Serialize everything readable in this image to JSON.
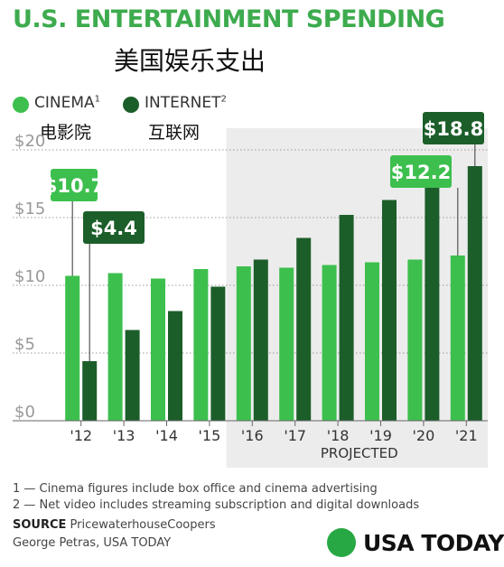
{
  "title": "U.S. ENTERTAINMENT SPENDING",
  "subtitle": "美国娱乐支出",
  "legend": [
    {
      "label": "CINEMA",
      "sup": "1",
      "cn": "电影院",
      "color": "#3dbf4e"
    },
    {
      "label": "INTERNET",
      "sup": "2",
      "cn": "互联网",
      "color": "#1c5e2a"
    }
  ],
  "chart_data": {
    "type": "bar",
    "categories": [
      "'12",
      "'13",
      "'14",
      "'15",
      "'16",
      "'17",
      "'18",
      "'19",
      "'20",
      "'21"
    ],
    "series": [
      {
        "name": "CINEMA",
        "color": "#3dbf4e",
        "values": [
          10.7,
          10.9,
          10.5,
          11.2,
          11.4,
          11.3,
          11.5,
          11.7,
          11.9,
          12.2
        ]
      },
      {
        "name": "INTERNET",
        "color": "#1c5e2a",
        "values": [
          4.4,
          6.7,
          8.1,
          9.9,
          11.9,
          13.5,
          15.2,
          16.3,
          17.6,
          18.8
        ]
      }
    ],
    "yticks": [
      "$0",
      "$5",
      "$10",
      "$15",
      "$20"
    ],
    "ylim": [
      0,
      20
    ],
    "grid": true,
    "projected_label": "PROJECTED",
    "callouts": [
      {
        "text": "$10.7",
        "series": 0,
        "category": 0
      },
      {
        "text": "$4.4",
        "series": 1,
        "category": 0
      },
      {
        "text": "$12.2",
        "series": 0,
        "category": 9
      },
      {
        "text": "$18.8",
        "series": 1,
        "category": 9
      }
    ]
  },
  "footnotes": [
    "1 — Cinema figures include box office and cinema advertising",
    "2 — Net video includes streaming subscription and digital downloads"
  ],
  "source": {
    "label": "SOURCE",
    "text": "PricewaterhouseCoopers"
  },
  "credit": "George Petras, USA TODAY",
  "brand": "USA TODAY"
}
